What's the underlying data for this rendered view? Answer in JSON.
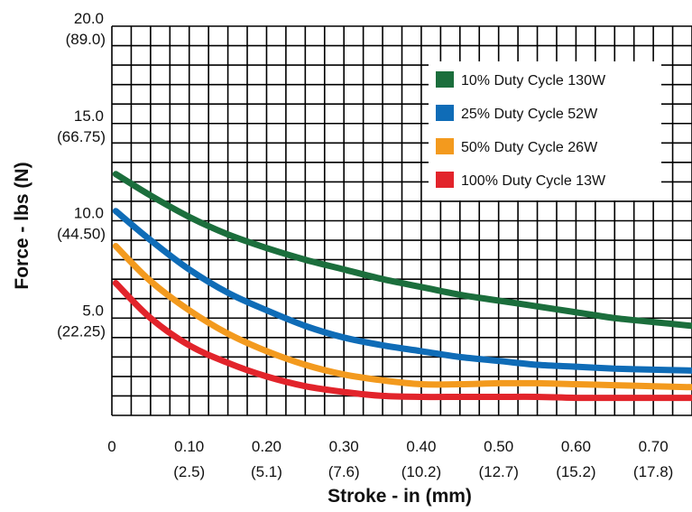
{
  "chart_data": {
    "type": "line",
    "xlabel": "Stroke - in (mm)",
    "ylabel": "Force - lbs (N)",
    "xlim": [
      0,
      0.75
    ],
    "ylim": [
      0,
      20
    ],
    "grid": true,
    "legend_position": "top-right",
    "x_ticks": [
      {
        "value": 0,
        "label": "0",
        "sublabel": ""
      },
      {
        "value": 0.1,
        "label": "0.10",
        "sublabel": "(2.5)"
      },
      {
        "value": 0.2,
        "label": "0.20",
        "sublabel": "(5.1)"
      },
      {
        "value": 0.3,
        "label": "0.30",
        "sublabel": "(7.6)"
      },
      {
        "value": 0.4,
        "label": "0.40",
        "sublabel": "(10.2)"
      },
      {
        "value": 0.5,
        "label": "0.50",
        "sublabel": "(12.7)"
      },
      {
        "value": 0.6,
        "label": "0.60",
        "sublabel": "(15.2)"
      },
      {
        "value": 0.7,
        "label": "0.70",
        "sublabel": "(17.8)"
      }
    ],
    "y_ticks": [
      {
        "value": 5,
        "label": "5.0",
        "sublabel": "(22.25)"
      },
      {
        "value": 10,
        "label": "10.0",
        "sublabel": "(44.50)"
      },
      {
        "value": 15,
        "label": "15.0",
        "sublabel": "(66.75)"
      },
      {
        "value": 20,
        "label": "20.0",
        "sublabel": "(89.0)"
      }
    ],
    "series": [
      {
        "name": "10% Duty Cycle 130W",
        "color": "#1b6e3c",
        "x": [
          0.005,
          0.05,
          0.1,
          0.15,
          0.2,
          0.25,
          0.3,
          0.35,
          0.4,
          0.45,
          0.5,
          0.55,
          0.6,
          0.65,
          0.7,
          0.75
        ],
        "y": [
          12.4,
          11.3,
          10.2,
          9.3,
          8.6,
          8.0,
          7.5,
          7.0,
          6.6,
          6.2,
          5.9,
          5.6,
          5.3,
          5.0,
          4.8,
          4.6
        ]
      },
      {
        "name": "25% Duty Cycle 52W",
        "color": "#0f6cb7",
        "x": [
          0.005,
          0.05,
          0.1,
          0.15,
          0.2,
          0.25,
          0.3,
          0.35,
          0.4,
          0.45,
          0.5,
          0.55,
          0.6,
          0.65,
          0.7,
          0.75
        ],
        "y": [
          10.5,
          9.0,
          7.5,
          6.3,
          5.4,
          4.6,
          4.0,
          3.6,
          3.3,
          3.0,
          2.8,
          2.6,
          2.5,
          2.4,
          2.35,
          2.3
        ]
      },
      {
        "name": "50% Duty Cycle 26W",
        "color": "#f39a1e",
        "x": [
          0.005,
          0.05,
          0.1,
          0.15,
          0.2,
          0.25,
          0.3,
          0.35,
          0.4,
          0.45,
          0.5,
          0.55,
          0.6,
          0.65,
          0.7,
          0.75
        ],
        "y": [
          8.7,
          6.9,
          5.4,
          4.2,
          3.3,
          2.6,
          2.1,
          1.8,
          1.6,
          1.6,
          1.65,
          1.65,
          1.6,
          1.55,
          1.5,
          1.45
        ]
      },
      {
        "name": "100% Duty Cycle 13W",
        "color": "#e2242b",
        "x": [
          0.005,
          0.05,
          0.1,
          0.15,
          0.2,
          0.25,
          0.3,
          0.35,
          0.4,
          0.45,
          0.5,
          0.55,
          0.6,
          0.65,
          0.7,
          0.75
        ],
        "y": [
          6.8,
          5.0,
          3.6,
          2.7,
          2.0,
          1.5,
          1.2,
          1.0,
          0.95,
          0.95,
          0.95,
          0.95,
          0.9,
          0.9,
          0.9,
          0.9
        ]
      }
    ]
  }
}
